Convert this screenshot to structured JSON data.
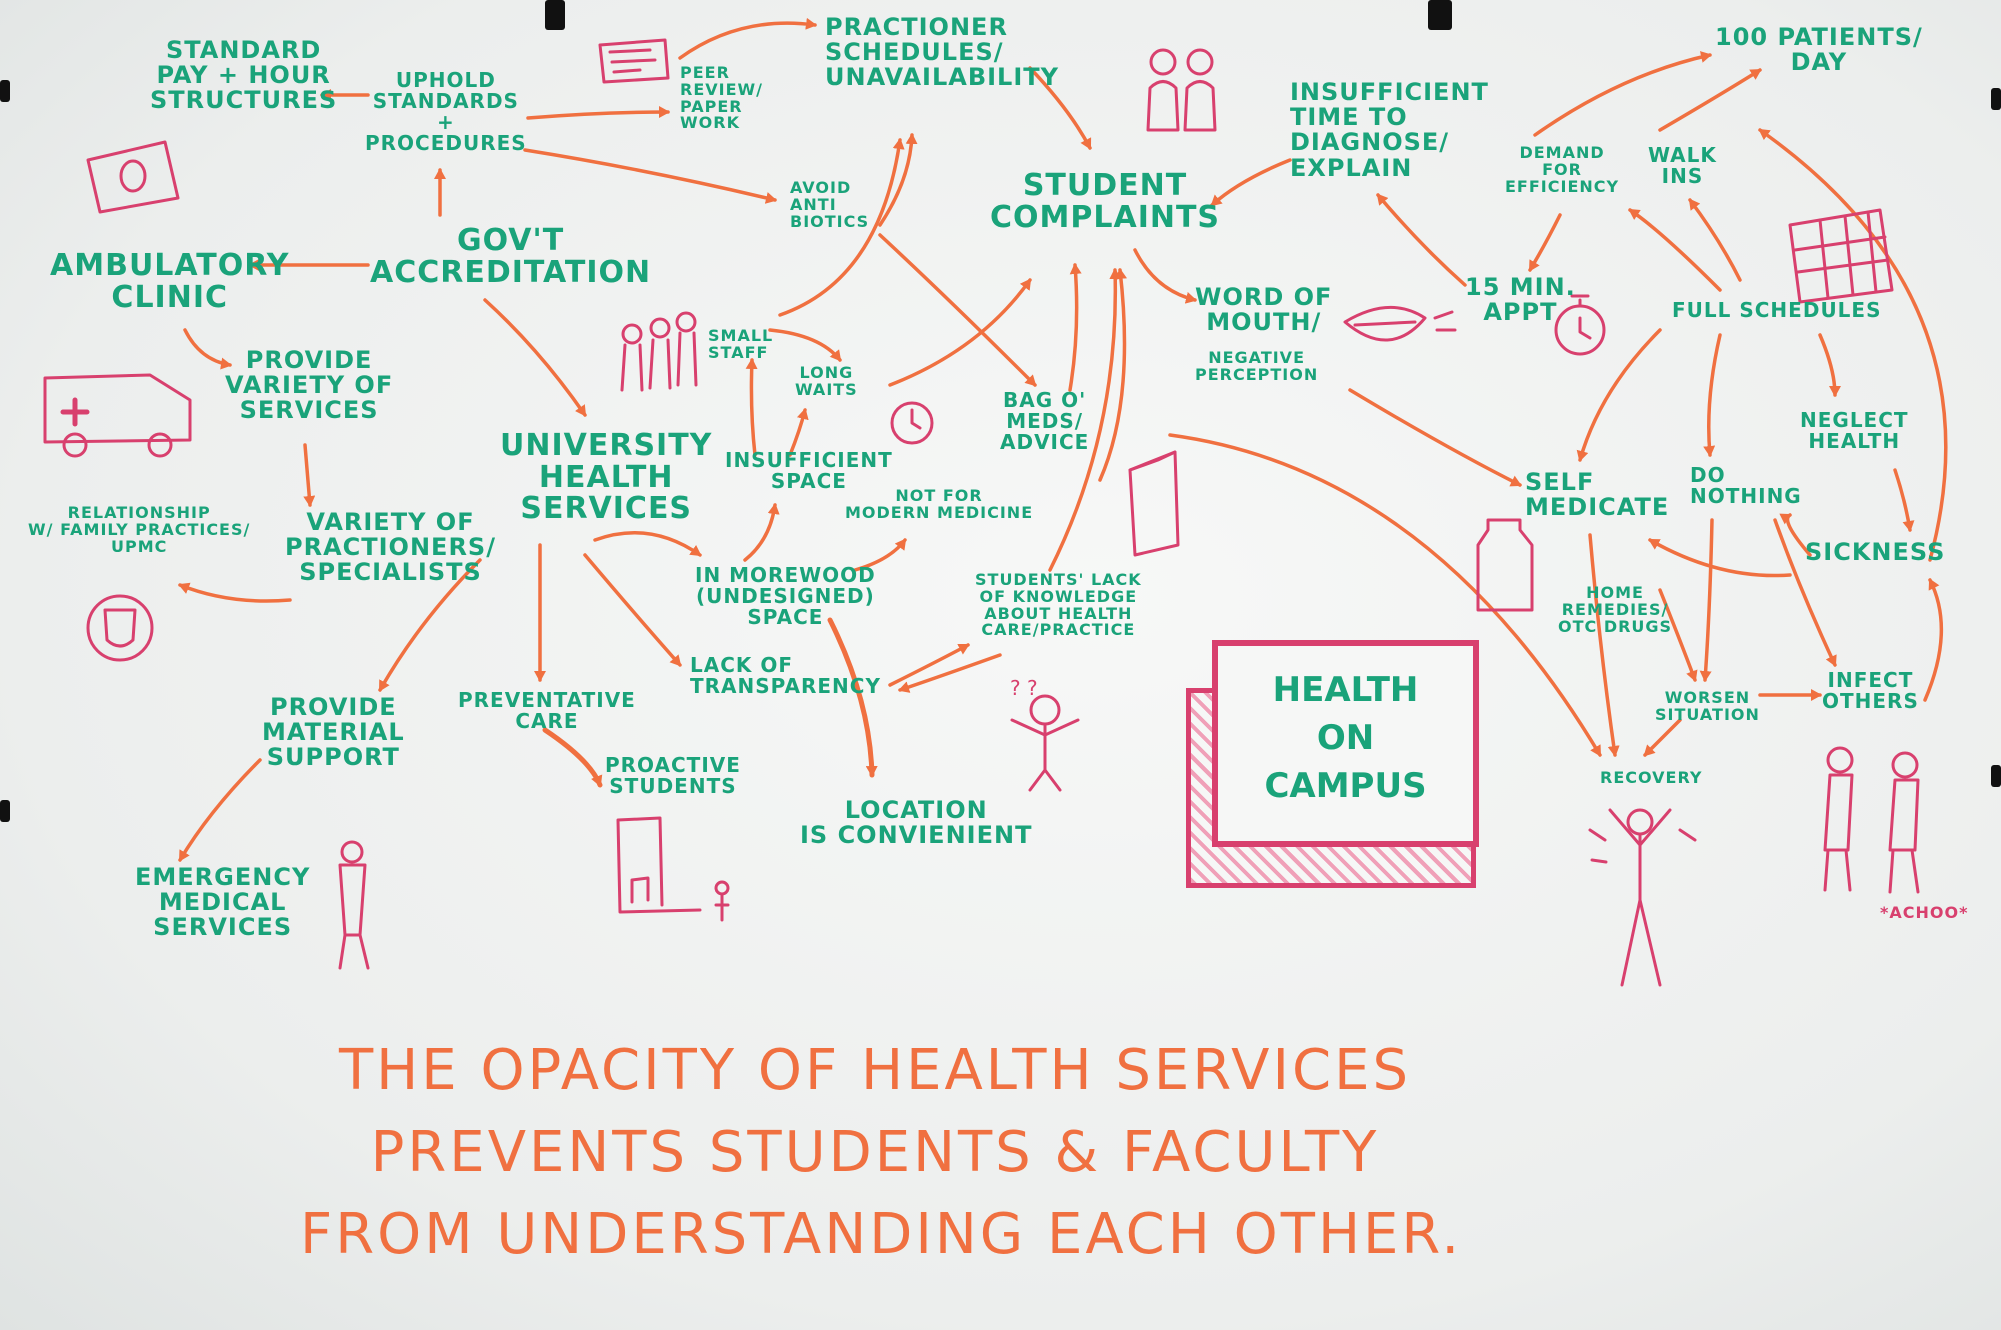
{
  "title": "THE OPACITY OF HEALTH SERVICES PREVENTS STUDENTS & FACULTY FROM UNDERSTANDING EACH OTHER.",
  "thesis_lines": [
    "THE OPACITY OF HEALTH SERVICES",
    "PREVENTS STUDENTS & FACULTY",
    "FROM UNDERSTANDING EACH OTHER."
  ],
  "center_box": {
    "line1": "HEALTH",
    "line2": "ON",
    "line3": "CAMPUS"
  },
  "nodes": {
    "standard_pay": [
      "STANDARD",
      "PAY + HOUR",
      "STRUCTURES"
    ],
    "uphold": [
      "UPHOLD",
      "STANDARDS",
      "+",
      "PROCEDURES"
    ],
    "peer_review": [
      "PEER",
      "REVIEW/",
      "PAPER",
      "WORK"
    ],
    "practioner_schedules": [
      "PRACTIONER",
      "SCHEDULES/",
      "UNAVAILABILITY"
    ],
    "avoid_antibiotics": [
      "AVOID",
      "ANTI",
      "BIOTICS"
    ],
    "govt_accreditation": [
      "GOV'T",
      "ACCREDITATION"
    ],
    "ambulatory_clinic": [
      "AMBULATORY",
      "CLINIC"
    ],
    "provide_variety": [
      "PROVIDE",
      "VARIETY OF",
      "SERVICES"
    ],
    "variety_practioners": [
      "VARIETY OF",
      "PRACTIONERS/",
      "SPECIALISTS"
    ],
    "relationship": [
      "RELATIONSHIP",
      "W/ FAMILY PRACTICES/",
      "UPMC"
    ],
    "university_health": [
      "UNIVERSITY",
      "HEALTH",
      "SERVICES"
    ],
    "small_staff": [
      "SMALL",
      "STAFF"
    ],
    "long_waits": [
      "LONG",
      "WAITS"
    ],
    "insufficient_space": [
      "INSUFFICIENT",
      "SPACE"
    ],
    "not_modern": [
      "NOT FOR",
      "MODERN MEDICINE"
    ],
    "in_morewood": [
      "IN MOREWOOD",
      "(UNDESIGNED)",
      "SPACE"
    ],
    "lack_transparency": [
      "LACK OF",
      "TRANSPARENCY"
    ],
    "location": [
      "LOCATION",
      "IS CONVIENIENT"
    ],
    "preventative_care": [
      "PREVENTATIVE",
      "CARE"
    ],
    "proactive_students": [
      "PROACTIVE",
      "STUDENTS"
    ],
    "material_support": [
      "PROVIDE",
      "MATERIAL",
      "SUPPORT"
    ],
    "emergency": [
      "EMERGENCY",
      "MEDICAL",
      "SERVICES"
    ],
    "student_complaints": [
      "STUDENT",
      "COMPLAINTS"
    ],
    "bag_meds": [
      "BAG O'",
      "MEDS/",
      "ADVICE"
    ],
    "students_lack": [
      "STUDENTS' LACK",
      "OF KNOWLEDGE",
      "ABOUT HEALTH",
      "CARE/PRACTICE"
    ],
    "word_of_mouth": [
      "WORD OF",
      "MOUTH/"
    ],
    "negative_perception": [
      "NEGATIVE",
      "PERCEPTION"
    ],
    "insufficient_time": [
      "INSUFFICIENT",
      "TIME TO",
      "DIAGNOSE/",
      "EXPLAIN"
    ],
    "appt": [
      "15 MIN.",
      "APPT"
    ],
    "patients_day": [
      "100 PATIENTS/",
      "DAY"
    ],
    "demand_efficiency": [
      "DEMAND",
      "FOR",
      "EFFICIENCY"
    ],
    "walk_ins": [
      "WALK",
      "INS"
    ],
    "full_schedules": [
      "FULL SCHEDULES"
    ],
    "neglect_health": [
      "NEGLECT",
      "HEALTH"
    ],
    "self_medicate": [
      "SELF",
      "MEDICATE"
    ],
    "do_nothing": [
      "DO",
      "NOTHING"
    ],
    "sickness": [
      "SICKNESS"
    ],
    "home_remedies": [
      "HOME",
      "REMEDIES/",
      "OTC DRUGS"
    ],
    "worsen": [
      "WORSEN",
      "SITUATION"
    ],
    "infect_others": [
      "INFECT",
      "OTHERS"
    ],
    "recovery": [
      "RECOVERY"
    ],
    "achoo": "*ACHOO*"
  },
  "colors": {
    "node": "#1aa37a",
    "arrow": "#f07040",
    "sketch": "#d8406e",
    "thesis": "#f07040"
  }
}
